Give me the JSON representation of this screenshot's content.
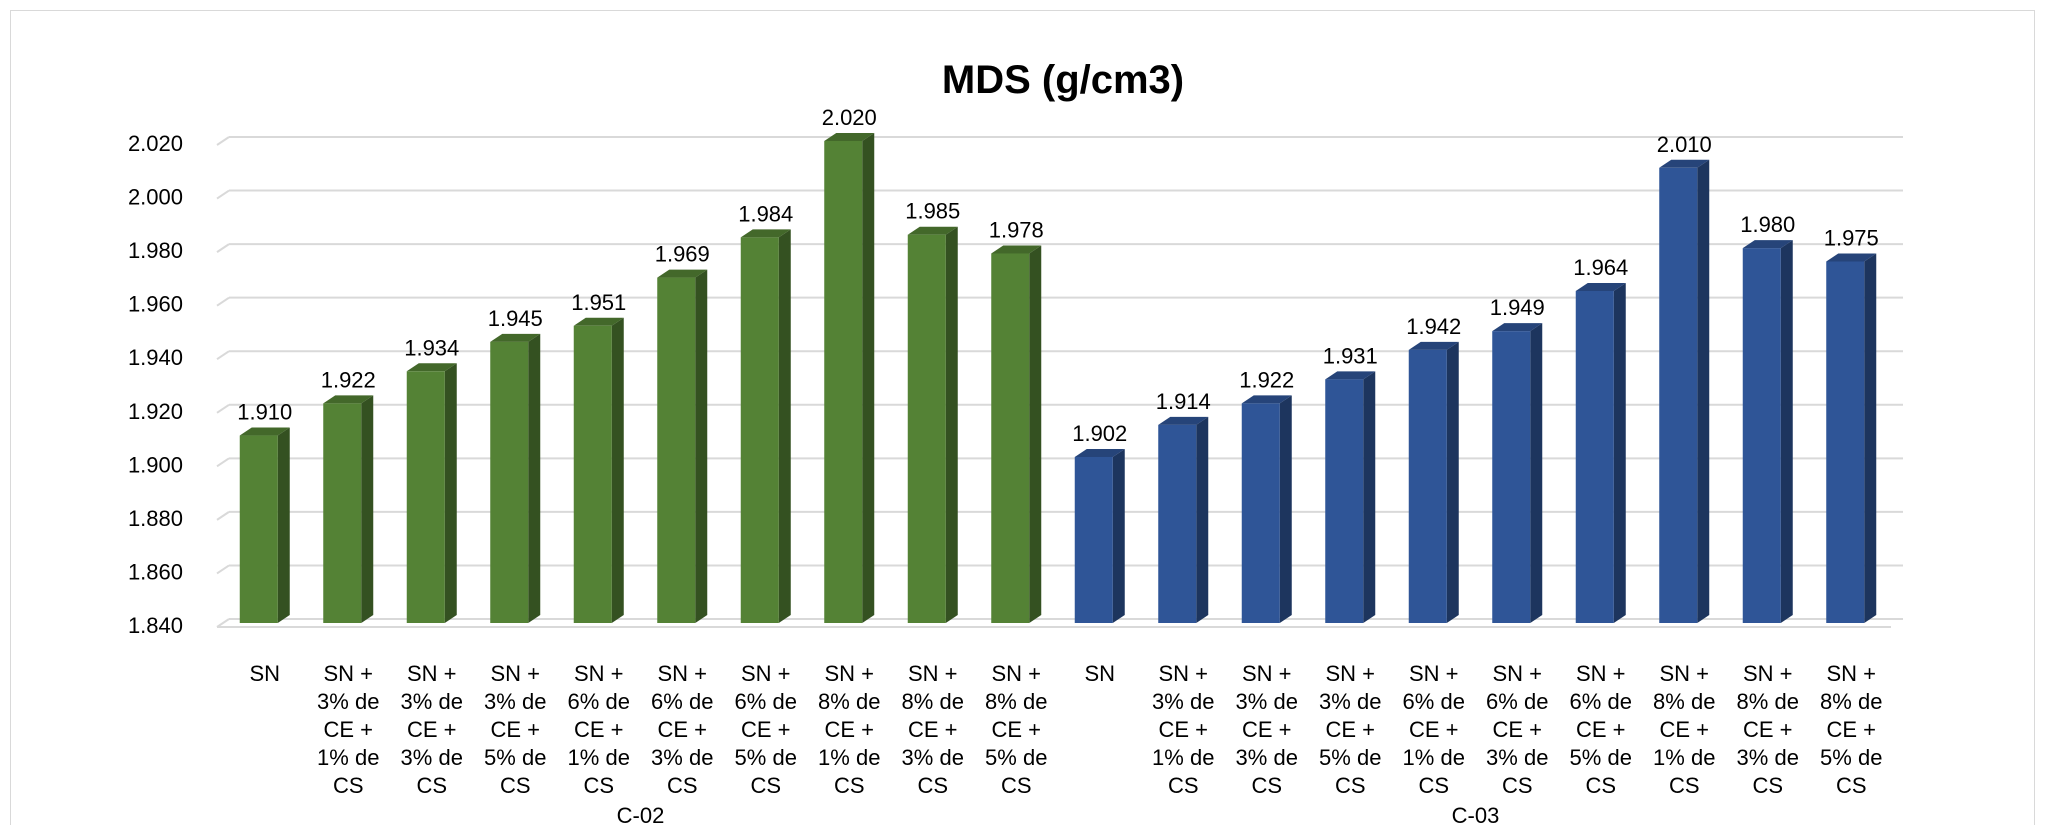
{
  "chart_data": {
    "type": "bar",
    "title": "MDS (g/cm3)",
    "ylim": [
      1.84,
      2.02
    ],
    "y_ticks": [
      "1.840",
      "1.860",
      "1.880",
      "1.900",
      "1.920",
      "1.940",
      "1.960",
      "1.980",
      "2.000",
      "2.020"
    ],
    "grid": true,
    "groups": [
      {
        "name": "C-02",
        "color": "#548235",
        "categories": [
          "SN",
          "SN + 3% de CE + 1% de CS",
          "SN + 3% de CE + 3% de CS",
          "SN + 3% de CE + 5% de CS",
          "SN + 6% de CE + 1% de CS",
          "SN + 6% de CE + 3% de CS",
          "SN + 6% de CE + 5% de CS",
          "SN + 8% de CE + 1% de CS",
          "SN + 8% de CE + 3% de CS",
          "SN + 8% de CE + 5% de CS"
        ],
        "values": [
          1.91,
          1.922,
          1.934,
          1.945,
          1.951,
          1.969,
          1.984,
          2.02,
          1.985,
          1.978
        ],
        "labels": [
          "1.910",
          "1.922",
          "1.934",
          "1.945",
          "1.951",
          "1.969",
          "1.984",
          "2.020",
          "1.985",
          "1.978"
        ]
      },
      {
        "name": "C-03",
        "color": "#2F5597",
        "categories": [
          "SN",
          "SN + 3% de CE + 1% de CS",
          "SN + 3% de CE + 3% de CS",
          "SN + 3% de CE + 5% de CS",
          "SN + 6% de CE + 1% de CS",
          "SN + 6% de CE + 3% de CS",
          "SN + 6% de CE + 5% de CS",
          "SN + 8% de CE + 1% de CS",
          "SN + 8% de CE + 3% de CS",
          "SN + 8% de CE + 5% de CS"
        ],
        "values": [
          1.902,
          1.914,
          1.922,
          1.931,
          1.942,
          1.949,
          1.964,
          2.01,
          1.98,
          1.975
        ],
        "labels": [
          "1.902",
          "1.914",
          "1.922",
          "1.931",
          "1.942",
          "1.949",
          "1.964",
          "2.010",
          "1.980",
          "1.975"
        ]
      }
    ]
  }
}
